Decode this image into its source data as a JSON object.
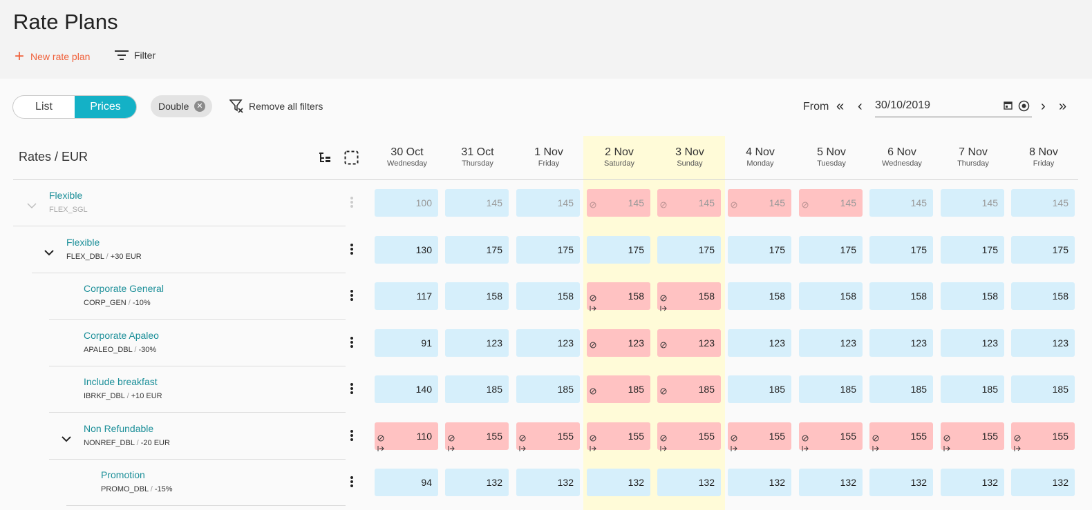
{
  "header": {
    "title": "Rate Plans",
    "new_label": "New rate plan",
    "filter_label": "Filter"
  },
  "toolbar": {
    "view_list": "List",
    "view_prices": "Prices",
    "chip_label": "Double",
    "remove_filters": "Remove all filters",
    "from_label": "From",
    "date_value": "30/10/2019"
  },
  "grid": {
    "title": "Rates / EUR",
    "days": [
      {
        "date": "30 Oct",
        "weekday": "Wednesday",
        "weekend": false
      },
      {
        "date": "31 Oct",
        "weekday": "Thursday",
        "weekend": false
      },
      {
        "date": "1 Nov",
        "weekday": "Friday",
        "weekend": false
      },
      {
        "date": "2 Nov",
        "weekday": "Saturday",
        "weekend": true
      },
      {
        "date": "3 Nov",
        "weekday": "Sunday",
        "weekend": true
      },
      {
        "date": "4 Nov",
        "weekday": "Monday",
        "weekend": false
      },
      {
        "date": "5 Nov",
        "weekday": "Tuesday",
        "weekend": false
      },
      {
        "date": "6 Nov",
        "weekday": "Wednesday",
        "weekend": false
      },
      {
        "date": "7 Nov",
        "weekday": "Thursday",
        "weekend": false
      },
      {
        "date": "8 Nov",
        "weekday": "Friday",
        "weekend": false
      }
    ],
    "rows": [
      {
        "name": "Flexible",
        "code": "FLEX_SGL",
        "mod": "",
        "level": 0,
        "chevron": "light",
        "dim": true,
        "prices": [
          "100",
          "145",
          "145",
          "145",
          "145",
          "145",
          "145",
          "145",
          "145",
          "145"
        ],
        "restricted": [
          false,
          false,
          false,
          true,
          true,
          true,
          true,
          false,
          false,
          false
        ],
        "arrival": [
          false,
          false,
          false,
          false,
          false,
          false,
          false,
          false,
          false,
          false
        ]
      },
      {
        "name": "Flexible",
        "code": "FLEX_DBL",
        "mod": "+30 EUR",
        "level": 1,
        "chevron": "dark",
        "dim": false,
        "prices": [
          "130",
          "175",
          "175",
          "175",
          "175",
          "175",
          "175",
          "175",
          "175",
          "175"
        ],
        "restricted": [
          false,
          false,
          false,
          false,
          false,
          false,
          false,
          false,
          false,
          false
        ],
        "arrival": [
          false,
          false,
          false,
          false,
          false,
          false,
          false,
          false,
          false,
          false
        ]
      },
      {
        "name": "Corporate General",
        "code": "CORP_GEN",
        "mod": "-10%",
        "level": 2,
        "chevron": "",
        "dim": false,
        "prices": [
          "117",
          "158",
          "158",
          "158",
          "158",
          "158",
          "158",
          "158",
          "158",
          "158"
        ],
        "restricted": [
          false,
          false,
          false,
          true,
          true,
          false,
          false,
          false,
          false,
          false
        ],
        "arrival": [
          false,
          false,
          false,
          true,
          true,
          false,
          false,
          false,
          false,
          false
        ]
      },
      {
        "name": "Corporate Apaleo",
        "code": "APALEO_DBL",
        "mod": "-30%",
        "level": 2,
        "chevron": "",
        "dim": false,
        "prices": [
          "91",
          "123",
          "123",
          "123",
          "123",
          "123",
          "123",
          "123",
          "123",
          "123"
        ],
        "restricted": [
          false,
          false,
          false,
          true,
          true,
          false,
          false,
          false,
          false,
          false
        ],
        "arrival": [
          false,
          false,
          false,
          false,
          false,
          false,
          false,
          false,
          false,
          false
        ]
      },
      {
        "name": "Include breakfast",
        "code": "IBRKF_DBL",
        "mod": "+10 EUR",
        "level": 2,
        "chevron": "",
        "dim": false,
        "prices": [
          "140",
          "185",
          "185",
          "185",
          "185",
          "185",
          "185",
          "185",
          "185",
          "185"
        ],
        "restricted": [
          false,
          false,
          false,
          true,
          true,
          false,
          false,
          false,
          false,
          false
        ],
        "arrival": [
          false,
          false,
          false,
          false,
          false,
          false,
          false,
          false,
          false,
          false
        ]
      },
      {
        "name": "Non Refundable",
        "code": "NONREF_DBL",
        "mod": "-20 EUR",
        "level": 2,
        "chevron": "dark",
        "dim": false,
        "prices": [
          "110",
          "155",
          "155",
          "155",
          "155",
          "155",
          "155",
          "155",
          "155",
          "155"
        ],
        "restricted": [
          true,
          true,
          true,
          true,
          true,
          true,
          true,
          true,
          true,
          true
        ],
        "arrival": [
          true,
          true,
          true,
          true,
          true,
          true,
          true,
          true,
          true,
          true
        ]
      },
      {
        "name": "Promotion",
        "code": "PROMO_DBL",
        "mod": "-15%",
        "level": 3,
        "chevron": "",
        "dim": false,
        "prices": [
          "94",
          "132",
          "132",
          "132",
          "132",
          "132",
          "132",
          "132",
          "132",
          "132"
        ],
        "restricted": [
          false,
          false,
          false,
          false,
          false,
          false,
          false,
          false,
          false,
          false
        ],
        "arrival": [
          false,
          false,
          false,
          false,
          false,
          false,
          false,
          false,
          false,
          false
        ]
      }
    ]
  },
  "icons": {
    "plus": "plus-icon",
    "filter": "filter-icon",
    "clear_filter": "filter-remove-icon",
    "chip_close": "close-circle-icon",
    "first": "double-chevron-left-icon",
    "prev": "chevron-left-icon",
    "next": "chevron-right-icon",
    "last": "double-chevron-right-icon",
    "calendar": "calendar-icon",
    "today": "target-icon",
    "tree": "tree-structure-icon",
    "select": "dashed-select-icon"
  },
  "colors": {
    "accent": "#14b1c6",
    "link": "#1a8e98",
    "orange": "#f0603a",
    "cell_blue": "#d6effb",
    "cell_red": "#ffc2c2",
    "weekend": "#fffbd8"
  }
}
